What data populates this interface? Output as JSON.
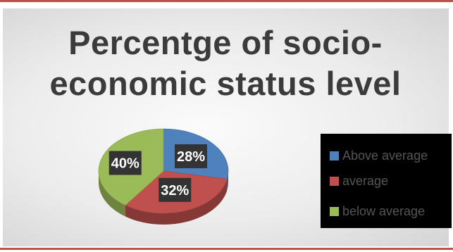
{
  "chart_data": {
    "type": "pie",
    "title": "Percentge of socio-economic status level",
    "title_lines": [
      "Percentge of socio-",
      "economic status level"
    ],
    "categories": [
      "Above average",
      "average",
      "below average"
    ],
    "values": [
      28,
      32,
      40
    ],
    "data_labels": [
      "28%",
      "32%",
      "40%"
    ],
    "colors": [
      "#4f81bd",
      "#c0504d",
      "#9bbb59"
    ],
    "legend_position": "right",
    "three_d": true
  }
}
